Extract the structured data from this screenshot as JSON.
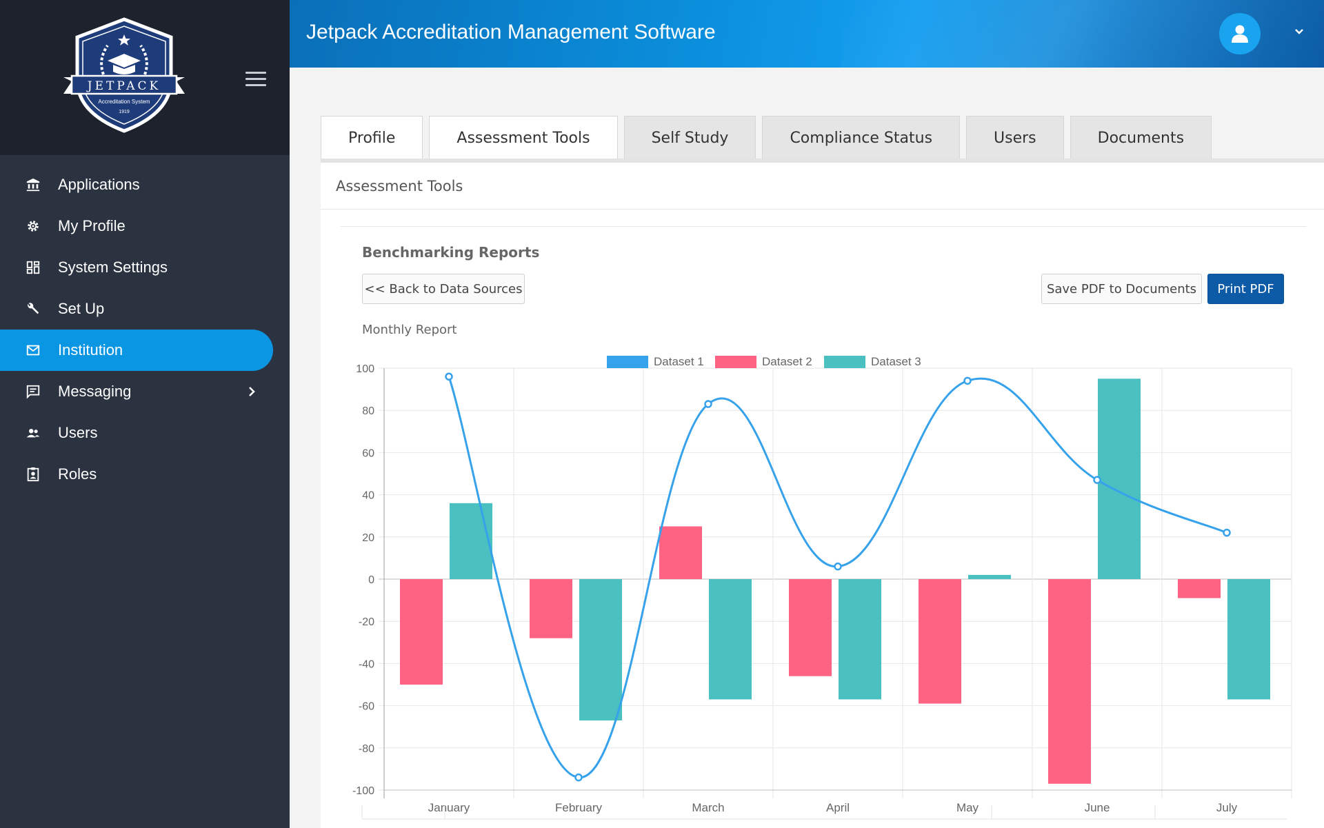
{
  "app": {
    "title": "Jetpack Accreditation Management Software"
  },
  "logo": {
    "brand": "JETPACK",
    "tagline": "Accreditation System",
    "year": "1919"
  },
  "sidebar": {
    "items": [
      {
        "label": "Applications",
        "icon": "bank-icon"
      },
      {
        "label": "My Profile",
        "icon": "gear-icon"
      },
      {
        "label": "System Settings",
        "icon": "dashboard-icon"
      },
      {
        "label": "Set Up",
        "icon": "wrench-icon"
      },
      {
        "label": "Institution",
        "icon": "mail-icon",
        "active": true
      },
      {
        "label": "Messaging",
        "icon": "chat-icon",
        "has_submenu": true
      },
      {
        "label": "Users",
        "icon": "users-icon"
      },
      {
        "label": "Roles",
        "icon": "badge-icon"
      }
    ]
  },
  "tabs": [
    {
      "label": "Profile"
    },
    {
      "label": "Assessment Tools",
      "active": true
    },
    {
      "label": "Self Study"
    },
    {
      "label": "Compliance Status"
    },
    {
      "label": "Users"
    },
    {
      "label": "Documents"
    }
  ],
  "panel": {
    "heading": "Assessment Tools",
    "section_title": "Benchmarking Reports",
    "back_button": "<< Back to Data Sources",
    "save_button": "Save PDF to Documents",
    "print_button": "Print PDF",
    "report_label": "Monthly Report"
  },
  "colors": {
    "accent": "#0a96e3",
    "dataset1": "#36a2eb",
    "dataset2": "#ff6384",
    "dataset3": "#4bc0c0"
  },
  "chart_data": {
    "type": "bar",
    "categories": [
      "January",
      "February",
      "March",
      "April",
      "May",
      "June",
      "July"
    ],
    "ylim": [
      -100,
      100
    ],
    "yticks": [
      100,
      80,
      60,
      40,
      20,
      0,
      -20,
      -40,
      -60,
      -80,
      -100
    ],
    "legend_position": "top",
    "grid": true,
    "series": [
      {
        "name": "Dataset 1",
        "type": "line",
        "values": [
          96,
          -94,
          83,
          6,
          94,
          47,
          22
        ]
      },
      {
        "name": "Dataset 2",
        "type": "bar",
        "values": [
          -50,
          -28,
          25,
          -46,
          -59,
          -97,
          -9
        ]
      },
      {
        "name": "Dataset 3",
        "type": "bar",
        "values": [
          36,
          -67,
          -57,
          -57,
          2,
          95,
          -57
        ]
      }
    ]
  }
}
